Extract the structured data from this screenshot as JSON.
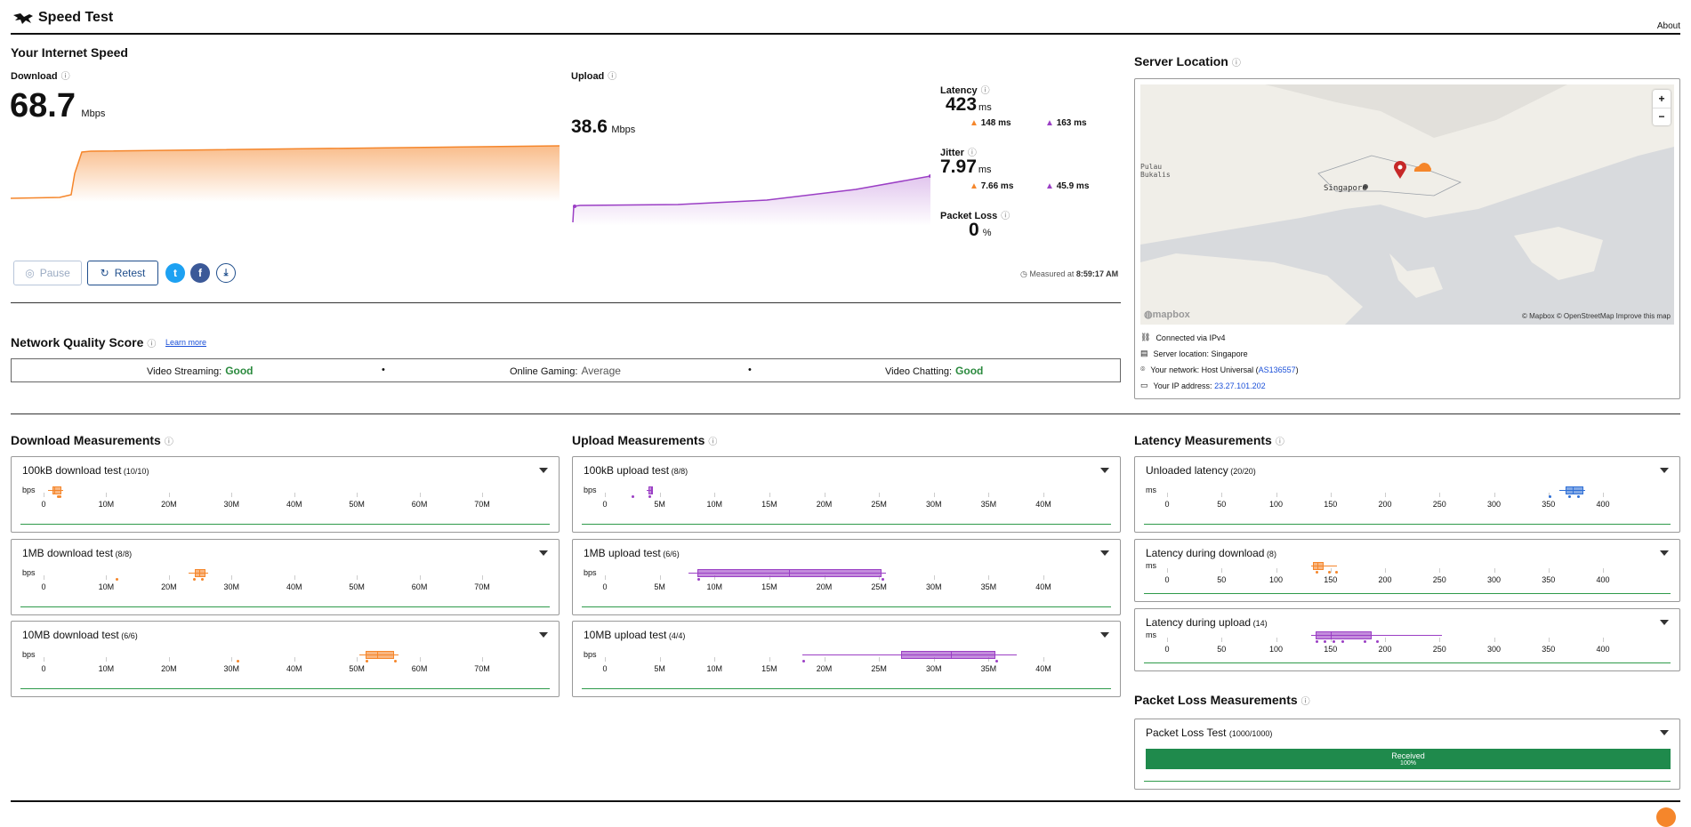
{
  "app": {
    "title": "Speed Test",
    "about": "About"
  },
  "speed": {
    "section_title": "Your Internet Speed",
    "download": {
      "label": "Download",
      "value": "68.7",
      "unit": "Mbps"
    },
    "upload": {
      "label": "Upload",
      "value": "38.6",
      "unit": "Mbps"
    },
    "latency": {
      "label": "Latency",
      "value": "423",
      "unit": "ms",
      "down": "148 ms",
      "up": "163 ms"
    },
    "jitter": {
      "label": "Jitter",
      "value": "7.97",
      "unit": "ms",
      "down": "7.66 ms",
      "up": "45.9 ms"
    },
    "packet_loss": {
      "label": "Packet Loss",
      "value": "0",
      "unit": "%"
    },
    "pause_label": "Pause",
    "retest_label": "Retest",
    "measured_at": "Measured at",
    "measured_time": "8:59:17 AM"
  },
  "server": {
    "title": "Server Location",
    "map_credit": "© Mapbox © OpenStreetMap  Improve this map",
    "map_logo": "mapbox",
    "place_singapore": "Singapore",
    "place_pulau": "Pulau\nBukalis",
    "connected": "Connected via IPv4",
    "server_location": "Server location: Singapore",
    "network_prefix": "Your network: Host Universal (",
    "network_asn": "AS136557",
    "network_suffix": ")",
    "ip_prefix": "Your IP address: ",
    "ip": "23.27.101.202",
    "zoom_in": "+",
    "zoom_out": "−"
  },
  "quality": {
    "title": "Network Quality Score",
    "learn_more": "Learn more",
    "streaming_label": "Video Streaming:",
    "streaming_value": "Good",
    "gaming_label": "Online Gaming:",
    "gaming_value": "Average",
    "chatting_label": "Video Chatting:",
    "chatting_value": "Good",
    "dot": "•"
  },
  "download_measurements": {
    "title": "Download Measurements",
    "unit": "bps",
    "ticks": [
      "0",
      "10M",
      "20M",
      "30M",
      "40M",
      "50M",
      "60M",
      "70M"
    ],
    "tests": [
      {
        "name": "100kB download test",
        "count": "(10/10)"
      },
      {
        "name": "1MB download test",
        "count": "(8/8)"
      },
      {
        "name": "10MB download test",
        "count": "(6/6)"
      }
    ]
  },
  "upload_measurements": {
    "title": "Upload Measurements",
    "unit": "bps",
    "ticks": [
      "0",
      "5M",
      "10M",
      "15M",
      "20M",
      "25M",
      "30M",
      "35M",
      "40M"
    ],
    "tests": [
      {
        "name": "100kB upload test",
        "count": "(8/8)"
      },
      {
        "name": "1MB upload test",
        "count": "(6/6)"
      },
      {
        "name": "10MB upload test",
        "count": "(4/4)"
      }
    ]
  },
  "latency_measurements": {
    "title": "Latency Measurements",
    "unit": "ms",
    "ticks": [
      "0",
      "50",
      "100",
      "150",
      "200",
      "250",
      "300",
      "350",
      "400"
    ],
    "tests": [
      {
        "name": "Unloaded latency",
        "count": "(20/20)"
      },
      {
        "name": "Latency during download",
        "count": "(8)"
      },
      {
        "name": "Latency during upload",
        "count": "(14)"
      }
    ]
  },
  "packet_loss_measurements": {
    "title": "Packet Loss Measurements",
    "test_name": "Packet Loss Test",
    "test_count": "(1000/1000)",
    "bar_label": "Received",
    "bar_pct": "100%",
    "received_fraction": 1.0
  },
  "colors": {
    "download": "#f5862b",
    "upload": "#9b3fc5",
    "latency": "#2f6fd6",
    "good": "#2b8a3e",
    "received": "#1f8a4c"
  }
}
